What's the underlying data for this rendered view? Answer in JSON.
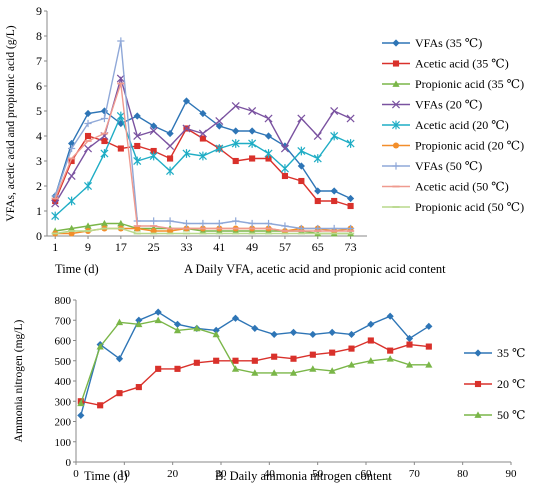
{
  "chart_data": [
    {
      "type": "line",
      "caption": "A  Daily VFA, acetic acid and propionic acid content",
      "xlabel": "Time (d)",
      "ylabel": "VFAs, acetic acid and propionic acid (g/L)",
      "xticks": [
        1,
        9,
        17,
        25,
        33,
        41,
        49,
        57,
        65,
        73
      ],
      "yticks": [
        0,
        1,
        2,
        3,
        4,
        5,
        6,
        7,
        8,
        9
      ],
      "xlim": [
        -1,
        77
      ],
      "ylim": [
        0,
        9
      ],
      "grid": false,
      "legend": "right",
      "series": [
        {
          "name": "VFAs (35 ℃)",
          "color": "#2e75b6",
          "marker": "diamond",
          "x": [
            1,
            5,
            9,
            13,
            17,
            21,
            25,
            29,
            33,
            37,
            41,
            45,
            49,
            53,
            57,
            61,
            65,
            69,
            73
          ],
          "y": [
            1.6,
            3.7,
            4.9,
            5.0,
            4.5,
            4.8,
            4.4,
            4.1,
            5.4,
            4.9,
            4.4,
            4.2,
            4.2,
            4.0,
            3.6,
            2.8,
            1.8,
            1.8,
            1.5
          ]
        },
        {
          "name": "Acetic acid (35 ℃)",
          "color": "#d9312b",
          "marker": "square",
          "x": [
            1,
            5,
            9,
            13,
            17,
            21,
            25,
            29,
            33,
            37,
            41,
            45,
            49,
            53,
            57,
            61,
            65,
            69,
            73
          ],
          "y": [
            1.4,
            3.0,
            4.0,
            3.8,
            3.5,
            3.6,
            3.4,
            3.1,
            4.3,
            3.9,
            3.5,
            3.0,
            3.1,
            3.1,
            2.4,
            2.2,
            1.4,
            1.4,
            1.2
          ]
        },
        {
          "name": "Propionic acid (35 ℃)",
          "color": "#7ab648",
          "marker": "triangle",
          "x": [
            1,
            5,
            9,
            13,
            17,
            21,
            25,
            29,
            33,
            37,
            41,
            45,
            49,
            53,
            57,
            61,
            65,
            69,
            73
          ],
          "y": [
            0.2,
            0.3,
            0.4,
            0.5,
            0.5,
            0.3,
            0.3,
            0.3,
            0.3,
            0.2,
            0.2,
            0.2,
            0.2,
            0.2,
            0.2,
            0.2,
            0.1,
            0.1,
            0.1
          ]
        },
        {
          "name": "VFAs (20 ℃)",
          "color": "#7a52a0",
          "marker": "x",
          "x": [
            1,
            5,
            9,
            13,
            17,
            21,
            25,
            29,
            33,
            37,
            41,
            45,
            49,
            53,
            57,
            61,
            65,
            69,
            73
          ],
          "y": [
            1.3,
            2.4,
            3.5,
            4.0,
            6.3,
            4.0,
            4.2,
            3.6,
            4.3,
            4.1,
            4.6,
            5.2,
            5.0,
            4.7,
            3.5,
            4.7,
            4.0,
            5.0,
            4.7
          ]
        },
        {
          "name": "Acetic acid (20 ℃)",
          "color": "#1fadc5",
          "marker": "asterisk",
          "x": [
            1,
            5,
            9,
            13,
            17,
            21,
            25,
            29,
            33,
            37,
            41,
            45,
            49,
            53,
            57,
            61,
            65,
            69,
            73
          ],
          "y": [
            0.8,
            1.4,
            2.0,
            3.3,
            4.8,
            3.0,
            3.2,
            2.6,
            3.3,
            3.2,
            3.5,
            3.7,
            3.7,
            3.3,
            2.7,
            3.4,
            3.1,
            4.0,
            3.7
          ]
        },
        {
          "name": "Propionic acid (20 ℃)",
          "color": "#f28e2b",
          "marker": "circle",
          "x": [
            1,
            5,
            9,
            13,
            17,
            21,
            25,
            29,
            33,
            37,
            41,
            45,
            49,
            53,
            57,
            61,
            65,
            69,
            73
          ],
          "y": [
            0.1,
            0.1,
            0.2,
            0.3,
            0.3,
            0.3,
            0.2,
            0.2,
            0.3,
            0.3,
            0.3,
            0.3,
            0.3,
            0.3,
            0.2,
            0.3,
            0.3,
            0.2,
            0.3
          ]
        },
        {
          "name": "VFAs (50 ℃)",
          "color": "#8fa8d8",
          "marker": "plus",
          "x": [
            1,
            5,
            9,
            13,
            17,
            21,
            25,
            29,
            33,
            37,
            41,
            45,
            49,
            53,
            57,
            61,
            65,
            69,
            73
          ],
          "y": [
            1.6,
            3.5,
            4.5,
            4.7,
            7.8,
            0.6,
            0.6,
            0.6,
            0.5,
            0.5,
            0.5,
            0.6,
            0.5,
            0.5,
            0.4,
            0.3,
            0.3,
            0.3,
            0.3
          ]
        },
        {
          "name": "Acetic acid (50 ℃)",
          "color": "#ef9a8f",
          "marker": "dash",
          "x": [
            1,
            5,
            9,
            13,
            17,
            21,
            25,
            29,
            33,
            37,
            41,
            45,
            49,
            53,
            57,
            61,
            65,
            69,
            73
          ],
          "y": [
            1.5,
            3.1,
            3.8,
            4.1,
            6.1,
            0.4,
            0.4,
            0.3,
            0.3,
            0.3,
            0.3,
            0.3,
            0.3,
            0.3,
            0.2,
            0.2,
            0.2,
            0.2,
            0.2
          ]
        },
        {
          "name": "Propionic acid (50 ℃)",
          "color": "#b8d98c",
          "marker": "dash",
          "x": [
            1,
            5,
            9,
            13,
            17,
            21,
            25,
            29,
            33,
            37,
            41,
            45,
            49,
            53,
            57,
            61,
            65,
            69,
            73
          ],
          "y": [
            0.1,
            0.2,
            0.2,
            0.3,
            0.3,
            0.1,
            0.1,
            0.1,
            0.1,
            0.1,
            0.1,
            0.1,
            0.1,
            0.1,
            0.1,
            0.1,
            0.1,
            0.1,
            0.1
          ]
        }
      ]
    },
    {
      "type": "line",
      "caption": "B. Daily ammonia nitrogen content",
      "xlabel": "Time (d)",
      "ylabel": "Ammonia nitrogen (mg/L)",
      "xticks": [
        0,
        10,
        20,
        30,
        40,
        50,
        60,
        70,
        80,
        90
      ],
      "yticks": [
        0,
        100,
        200,
        300,
        400,
        500,
        600,
        700,
        800
      ],
      "xlim": [
        0,
        90
      ],
      "ylim": [
        0,
        800
      ],
      "grid": false,
      "legend": "right",
      "series": [
        {
          "name": "35 ℃",
          "color": "#2e75b6",
          "marker": "diamond",
          "x": [
            1,
            5,
            9,
            13,
            17,
            21,
            25,
            29,
            33,
            37,
            41,
            45,
            49,
            53,
            57,
            61,
            65,
            69,
            73
          ],
          "y": [
            230,
            580,
            510,
            700,
            740,
            680,
            660,
            650,
            710,
            660,
            630,
            640,
            630,
            640,
            630,
            680,
            720,
            610,
            670
          ]
        },
        {
          "name": "20 ℃",
          "color": "#d9312b",
          "marker": "square",
          "x": [
            1,
            5,
            9,
            13,
            17,
            21,
            25,
            29,
            33,
            37,
            41,
            45,
            49,
            53,
            57,
            61,
            65,
            69,
            73
          ],
          "y": [
            300,
            280,
            340,
            370,
            460,
            460,
            490,
            500,
            500,
            500,
            520,
            510,
            530,
            540,
            560,
            600,
            550,
            580,
            570
          ]
        },
        {
          "name": "50 ℃",
          "color": "#7ab648",
          "marker": "triangle",
          "x": [
            1,
            5,
            9,
            13,
            17,
            21,
            25,
            29,
            33,
            37,
            41,
            45,
            49,
            53,
            57,
            61,
            65,
            69,
            73
          ],
          "y": [
            290,
            570,
            690,
            680,
            700,
            650,
            660,
            630,
            460,
            440,
            440,
            440,
            460,
            450,
            480,
            500,
            510,
            480,
            480
          ]
        }
      ]
    }
  ]
}
